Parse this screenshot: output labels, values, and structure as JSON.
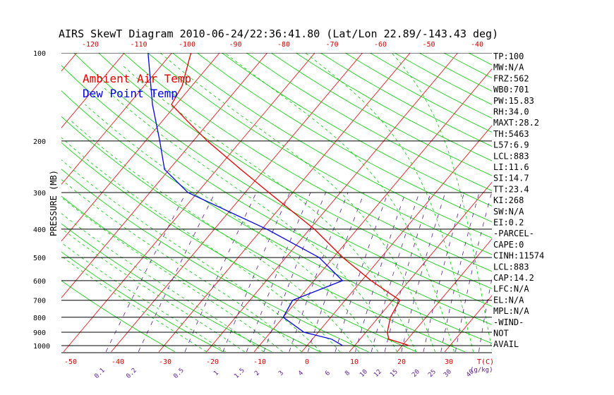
{
  "chart_data": {
    "type": "line",
    "title": "AIRS SkewT Diagram 2010-06-24/22:36:41.80 (Lat/Lon 22.89/-143.43 deg)",
    "ylabel": "PRESSURE (MB)",
    "y_scale": "log",
    "ylim": [
      1020,
      100
    ],
    "pressure_ticks": [
      100,
      200,
      300,
      400,
      500,
      600,
      700,
      800,
      900,
      1000
    ],
    "bottom_temp_ticks": [
      -50,
      -40,
      -30,
      -20,
      -10,
      0,
      10,
      20,
      30
    ],
    "bottom_temp_unit": "T(C)",
    "top_temp_ticks": [
      -120,
      -110,
      -100,
      -90,
      -80,
      -70,
      -60,
      -50,
      -40
    ],
    "mixing_ratio_ticks": [
      "0.1",
      "0.2",
      "0.5",
      "1",
      "1.5",
      "2",
      "3",
      "4",
      "6",
      "8",
      "10",
      "12",
      "15",
      "20",
      "25",
      "30",
      "40"
    ],
    "mixing_ratio_unit": "(g/kg)",
    "legend": [
      {
        "label": "Ambient Air Temp",
        "color": "#e00000"
      },
      {
        "label": "Dew Point Temp",
        "color": "#0000e0"
      }
    ],
    "series": [
      {
        "name": "Ambient Air Temp",
        "color": "#e00000",
        "points": [
          {
            "p": 1000,
            "t": 21.5
          },
          {
            "p": 950,
            "t": 16
          },
          {
            "p": 900,
            "t": 14.5
          },
          {
            "p": 800,
            "t": 12.5
          },
          {
            "p": 700,
            "t": 11.5
          },
          {
            "p": 600,
            "t": 2
          },
          {
            "p": 500,
            "t": -8
          },
          {
            "p": 400,
            "t": -19
          },
          {
            "p": 300,
            "t": -35
          },
          {
            "p": 250,
            "t": -45
          },
          {
            "p": 200,
            "t": -57
          },
          {
            "p": 170,
            "t": -65
          },
          {
            "p": 150,
            "t": -71
          },
          {
            "p": 130,
            "t": -72
          },
          {
            "p": 100,
            "t": -76
          }
        ]
      },
      {
        "name": "Dew Point Temp",
        "color": "#0000e0",
        "points": [
          {
            "p": 1000,
            "t": 7.5
          },
          {
            "p": 950,
            "t": 4
          },
          {
            "p": 900,
            "t": -3
          },
          {
            "p": 800,
            "t": -10
          },
          {
            "p": 700,
            "t": -11
          },
          {
            "p": 600,
            "t": -4
          },
          {
            "p": 500,
            "t": -13
          },
          {
            "p": 400,
            "t": -29
          },
          {
            "p": 300,
            "t": -52
          },
          {
            "p": 250,
            "t": -61
          },
          {
            "p": 200,
            "t": -67
          },
          {
            "p": 150,
            "t": -75
          },
          {
            "p": 100,
            "t": -85
          }
        ]
      }
    ],
    "indices": [
      "TP:100",
      "MW:N/A",
      "FRZ:562",
      "WB0:701",
      "PW:15.83",
      "RH:34.0",
      "MAXT:28.2",
      "TH:5463",
      "L57:6.9",
      "LCL:883",
      "LI:11.6",
      "SI:14.7",
      "TT:23.4",
      "KI:268",
      "SW:N/A",
      "EI:0.2",
      "-PARCEL-",
      "CAPE:0",
      "CINH:11574",
      "LCL:883",
      "CAP:14.2",
      "LFC:N/A",
      "EL:N/A",
      "MPL:N/A",
      "-WIND-",
      "NOT",
      "AVAIL"
    ],
    "colors": {
      "isotherm": "#e00000",
      "dry_adiabat": "#00cc00",
      "moist_adiabat": "#00cc00",
      "mixing_ratio": "#5a1a90",
      "isobar": "#000000"
    }
  }
}
